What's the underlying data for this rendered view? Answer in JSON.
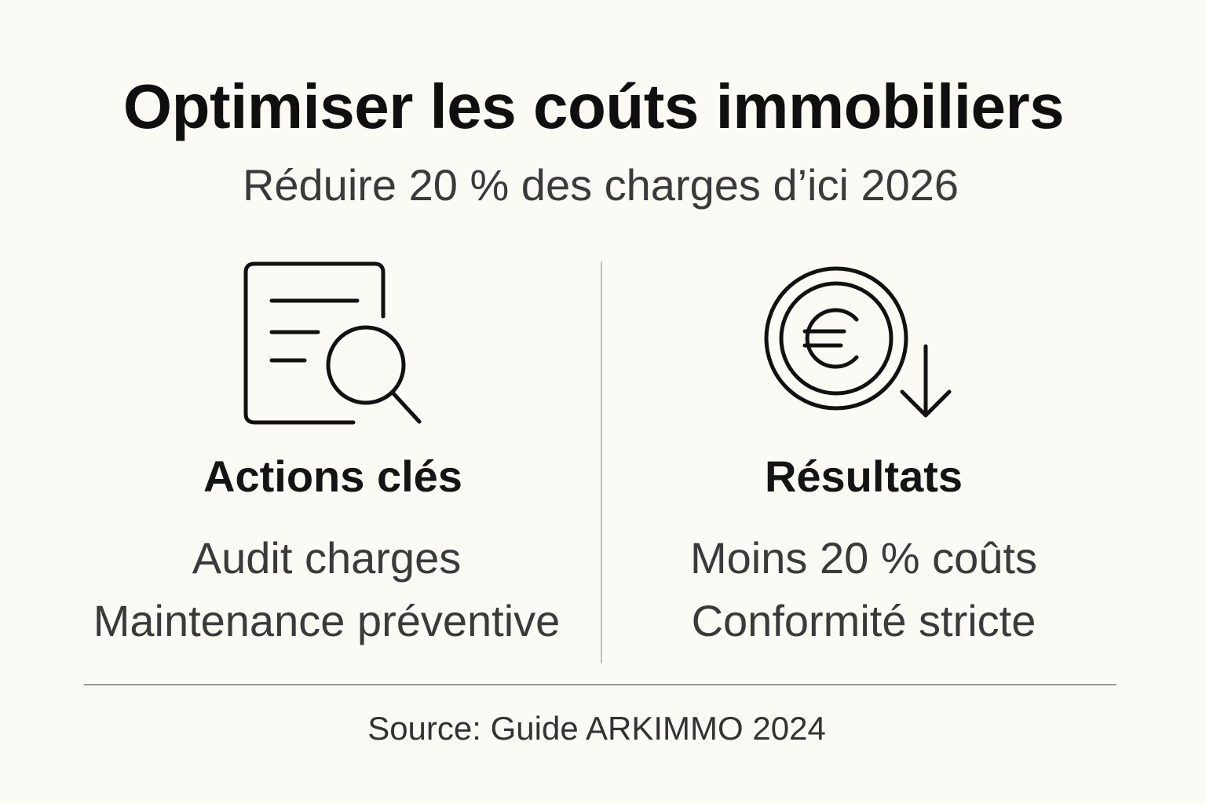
{
  "header": {
    "title": "Optimiser les coúts immobiliers",
    "subtitle": "Réduire 20 % des charges d’ici 2026"
  },
  "left_panel": {
    "icon": "document-search-icon",
    "heading": "Actions clés",
    "items": [
      "Audit charges",
      "Maintenance préventive"
    ]
  },
  "right_panel": {
    "icon": "euro-coin-down-arrow-icon",
    "heading": "Résultats",
    "items": [
      "Moins 20 % coûts",
      "Conformité stricte"
    ]
  },
  "footer": {
    "source": "Source: Guide ARKIMMO 2024"
  },
  "colors": {
    "background": "#FBFAF5",
    "title": "#0F0F0F",
    "body_text": "#3A3A3A",
    "icon_stroke": "#111111",
    "divider": "#BEBEBE"
  }
}
